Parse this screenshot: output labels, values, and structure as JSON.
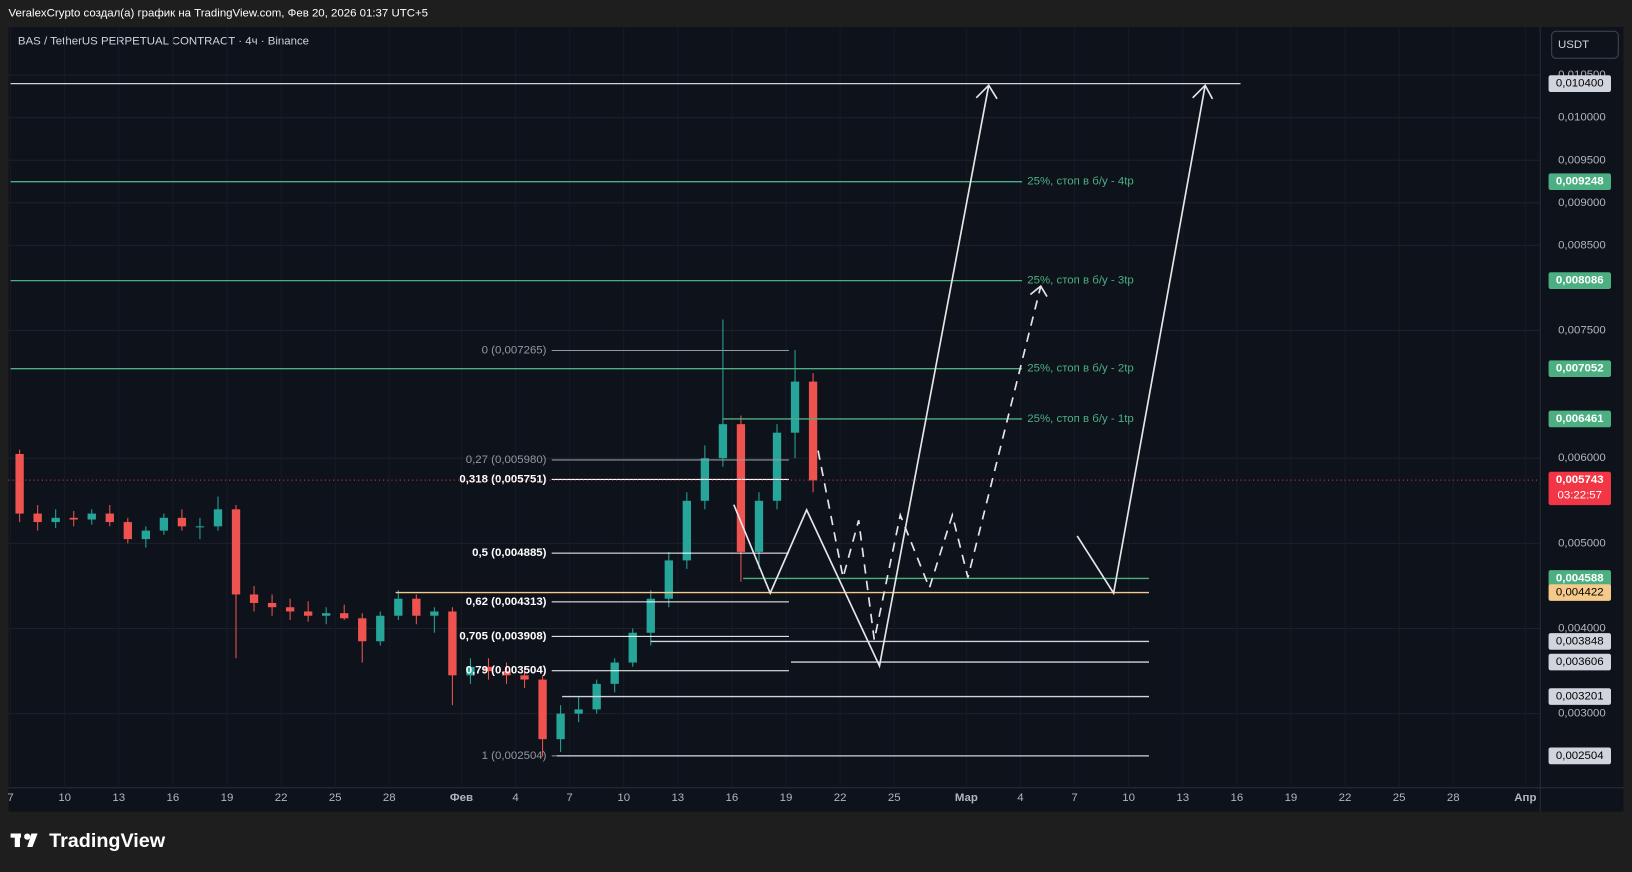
{
  "header": {
    "author_line": "VeralexCrypto создал(а) график на TradingView.com, Фев 20, 2026 01:37 UTC+5",
    "logo": "TradingView"
  },
  "chart_data": {
    "type": "candlestick",
    "title": "BAS / TetherUS PERPETUAL CONTRACT · 4ч · Binance",
    "currency": "USDT",
    "up_color": "#26a69a",
    "down_color": "#ef5350",
    "grid": true,
    "categories": [
      "7",
      null,
      null,
      "10",
      null,
      null,
      "13",
      null,
      null,
      "16",
      null,
      null,
      "19",
      null,
      null,
      "22",
      null,
      null,
      "25",
      null,
      null,
      "28",
      null,
      null,
      null,
      "Фев",
      null,
      null,
      "4",
      null,
      null,
      "7",
      null,
      null,
      "10",
      null,
      null,
      "13",
      null,
      null,
      "16",
      null,
      null,
      "19",
      null,
      null,
      "22",
      null,
      null,
      "25",
      null,
      null,
      null,
      "Мар",
      null,
      null,
      "4",
      null,
      null,
      "7",
      null,
      null,
      "10",
      null,
      null,
      "13",
      null,
      null,
      "16",
      null,
      null,
      "19",
      null,
      null,
      "22",
      null,
      null,
      "25",
      null,
      null,
      "28",
      null,
      null,
      null,
      "Апр"
    ],
    "open": [
      0.00605,
      0.00535,
      0.00525,
      0.0053,
      0.00528,
      0.00535,
      0.00525,
      0.00505,
      0.00515,
      0.0053,
      0.0052,
      0.0052,
      0.0054,
      0.0044,
      0.0043,
      0.00425,
      0.0042,
      0.00415,
      0.00418,
      0.00412,
      0.00385,
      0.00415,
      0.00435,
      0.00415,
      0.0042,
      0.00345,
      0.00355,
      0.0035,
      0.00345,
      0.0034,
      0.0027,
      0.003,
      0.00305,
      0.00335,
      0.0036,
      0.00395,
      0.00435,
      0.0048,
      0.0055,
      0.006,
      0.0064,
      0.0049,
      0.0055,
      0.0063,
      0.0069,
      null,
      null,
      null,
      null,
      null,
      null,
      null,
      null,
      null,
      null,
      null,
      null,
      null,
      null,
      null,
      null,
      null,
      null,
      null,
      null,
      null,
      null,
      null,
      null,
      null,
      null,
      null,
      null,
      null,
      null,
      null,
      null,
      null,
      null,
      null,
      null,
      null,
      null,
      null,
      null
    ],
    "high": [
      0.0061,
      0.00545,
      0.0054,
      0.00538,
      0.0054,
      0.00545,
      0.0053,
      0.0052,
      0.00535,
      0.0054,
      0.0053,
      0.00555,
      0.00545,
      0.0045,
      0.0044,
      0.00435,
      0.00432,
      0.00425,
      0.00428,
      0.00418,
      0.0042,
      0.00445,
      0.0044,
      0.00425,
      0.00425,
      0.00365,
      0.00365,
      0.0036,
      0.00355,
      0.00345,
      0.0031,
      0.0032,
      0.0034,
      0.00365,
      0.004,
      0.00445,
      0.0049,
      0.0056,
      0.00615,
      0.00763,
      0.0065,
      0.0056,
      0.0064,
      0.00727,
      0.007,
      null,
      null,
      null,
      null,
      null,
      null,
      null,
      null,
      null,
      null,
      null,
      null,
      null,
      null,
      null,
      null,
      null,
      null,
      null,
      null,
      null,
      null,
      null,
      null,
      null,
      null,
      null,
      null,
      null,
      null,
      null,
      null,
      null,
      null,
      null,
      null,
      null,
      null,
      null,
      null
    ],
    "low": [
      0.00525,
      0.00515,
      0.00518,
      0.0052,
      0.00522,
      0.0052,
      0.005,
      0.00495,
      0.0051,
      0.00515,
      0.00505,
      0.00515,
      0.00365,
      0.0042,
      0.00415,
      0.0041,
      0.00408,
      0.00405,
      0.0041,
      0.0036,
      0.0038,
      0.0041,
      0.00405,
      0.00395,
      0.0031,
      0.00335,
      0.0034,
      0.00335,
      0.0033,
      0.0025,
      0.00255,
      0.0029,
      0.003,
      0.00325,
      0.00355,
      0.0038,
      0.00425,
      0.0047,
      0.0054,
      0.0059,
      0.00455,
      0.0047,
      0.0054,
      0.006,
      0.0056,
      null,
      null,
      null,
      null,
      null,
      null,
      null,
      null,
      null,
      null,
      null,
      null,
      null,
      null,
      null,
      null,
      null,
      null,
      null,
      null,
      null,
      null,
      null,
      null,
      null,
      null,
      null,
      null,
      null,
      null,
      null,
      null,
      null,
      null,
      null,
      null,
      null,
      null,
      null,
      null
    ],
    "close": [
      0.00535,
      0.00525,
      0.0053,
      0.00528,
      0.00535,
      0.00525,
      0.00505,
      0.00515,
      0.0053,
      0.0052,
      0.0052,
      0.0054,
      0.0044,
      0.0043,
      0.00425,
      0.0042,
      0.00415,
      0.00418,
      0.00412,
      0.00385,
      0.00415,
      0.00435,
      0.00415,
      0.0042,
      0.00345,
      0.00355,
      0.0035,
      0.00345,
      0.0034,
      0.0027,
      0.003,
      0.00305,
      0.00335,
      0.0036,
      0.00395,
      0.00435,
      0.0048,
      0.0055,
      0.006,
      0.0064,
      0.0049,
      0.0055,
      0.0063,
      0.0069,
      0.00574,
      null,
      null,
      null,
      null,
      null,
      null,
      null,
      null,
      null,
      null,
      null,
      null,
      null,
      null,
      null,
      null,
      null,
      null,
      null,
      null,
      null,
      null,
      null,
      null,
      null,
      null,
      null,
      null,
      null,
      null,
      null,
      null,
      null,
      null,
      null,
      null,
      null,
      null,
      null,
      null
    ],
    "ylim": [
      0.00213,
      0.01071
    ],
    "yticks": [
      {
        "value": 0.003,
        "label": "0,003000"
      },
      {
        "value": 0.004,
        "label": "0,004000"
      },
      {
        "value": 0.005,
        "label": "0,005000"
      },
      {
        "value": 0.006,
        "label": "0,006000"
      },
      {
        "value": 0.0075,
        "label": "0,007500"
      },
      {
        "value": 0.0085,
        "label": "0,008500"
      },
      {
        "value": 0.009,
        "label": "0,009000"
      },
      {
        "value": 0.0095,
        "label": "0,009500"
      },
      {
        "value": 0.01,
        "label": "0,010000"
      },
      {
        "value": 0.0105,
        "label": "0,010500"
      }
    ],
    "levels": [
      {
        "value": 0.0104,
        "label": "0,010400",
        "color": "#d1d4dc",
        "text_color": "#000000"
      },
      {
        "value": 0.009248,
        "label": "0,009248",
        "color": "#4caf82",
        "text_color": "#ffffff",
        "note": "25%, стоп в б/у - 4tp"
      },
      {
        "value": 0.008086,
        "label": "0,008086",
        "color": "#4caf82",
        "text_color": "#ffffff",
        "note": "25%, стоп в б/у - 3tp"
      },
      {
        "value": 0.007052,
        "label": "0,007052",
        "color": "#4caf82",
        "text_color": "#ffffff",
        "note": "25%, стоп в б/у - 2tp"
      },
      {
        "value": 0.006461,
        "label": "0,006461",
        "color": "#4caf82",
        "text_color": "#ffffff",
        "note": "25%, стоп в б/у - 1tp"
      },
      {
        "value": 0.004588,
        "label": "0,004588",
        "color": "#4caf82",
        "text_color": "#ffffff"
      },
      {
        "value": 0.004422,
        "label": "0,004422",
        "color": "#f5c98a",
        "text_color": "#000000"
      },
      {
        "value": 0.003848,
        "label": "0,003848",
        "color": "#d1d4dc",
        "text_color": "#000000"
      },
      {
        "value": 0.003606,
        "label": "0,003606",
        "color": "#d1d4dc",
        "text_color": "#000000"
      },
      {
        "value": 0.003201,
        "label": "0,003201",
        "color": "#d1d4dc",
        "text_color": "#000000"
      },
      {
        "value": 0.002504,
        "label": "0,002504",
        "color": "#d1d4dc",
        "text_color": "#000000"
      }
    ],
    "current_price": {
      "value": 0.005743,
      "label": "0,005743",
      "countdown": "03:22:57",
      "color": "#f23645"
    },
    "fib_levels": [
      {
        "value": 0.007265,
        "label": "0 (0,007265)",
        "color": "#9598a1"
      },
      {
        "value": 0.00598,
        "label": "0,27 (0,005980)",
        "color": "#9598a1"
      },
      {
        "value": 0.005751,
        "label": "0,318 (0,005751)",
        "color": "#ffffff"
      },
      {
        "value": 0.004885,
        "label": "0,5 (0,004885)",
        "color": "#ffffff"
      },
      {
        "value": 0.004313,
        "label": "0,62 (0,004313)",
        "color": "#ffffff"
      },
      {
        "value": 0.003908,
        "label": "0,705 (0,003908)",
        "color": "#ffffff"
      },
      {
        "value": 0.003504,
        "label": "0,79 (0,003504)",
        "color": "#ffffff"
      },
      {
        "value": 0.002504,
        "label": "1 (0,002504)",
        "color": "#9598a1"
      }
    ]
  }
}
